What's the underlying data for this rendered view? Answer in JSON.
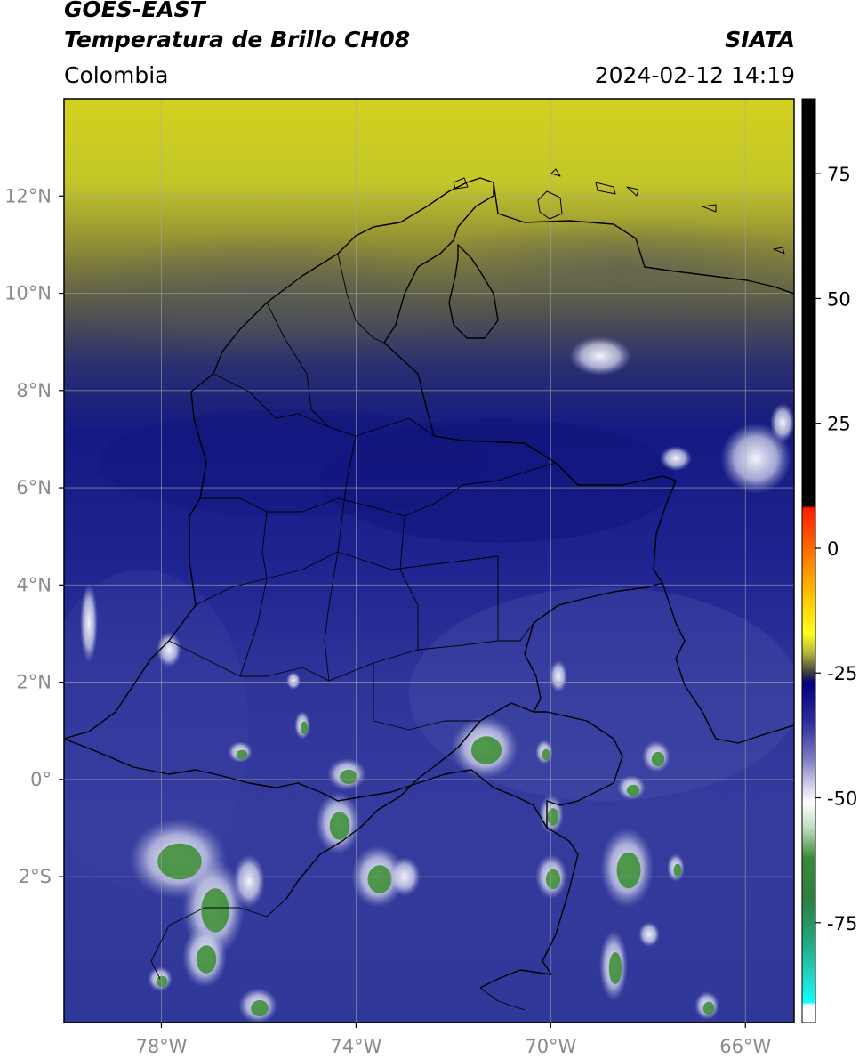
{
  "header": {
    "satellite": "GOES-EAST",
    "product": "Temperatura de Brillo CH08",
    "region": "Colombia",
    "agency": "SIATA",
    "datetime": "2024-02-12 14:19"
  },
  "map": {
    "lon_range": [
      -80,
      -65
    ],
    "lat_range": [
      -5.0,
      14.0
    ],
    "lon_ticks": [
      {
        "value": -78,
        "label": "78°W"
      },
      {
        "value": -74,
        "label": "74°W"
      },
      {
        "value": -70,
        "label": "70°W"
      },
      {
        "value": -66,
        "label": "66°W"
      }
    ],
    "lat_ticks": [
      {
        "value": 12,
        "label": "12°N"
      },
      {
        "value": 10,
        "label": "10°N"
      },
      {
        "value": 8,
        "label": "8°N"
      },
      {
        "value": 6,
        "label": "6°N"
      },
      {
        "value": 4,
        "label": "4°N"
      },
      {
        "value": 2,
        "label": "2°N"
      },
      {
        "value": 0,
        "label": "0°"
      },
      {
        "value": -2,
        "label": "2°S"
      }
    ],
    "gridlines": true,
    "colors": {
      "warm_yellow": "#cfcf1f",
      "mid_olive": "#6f6e3a",
      "cold_navy": "#1b1f86",
      "mid_blue": "#3a42a6",
      "cloud_white": "#f3f3f8",
      "deep_convection_green": "#3f8f3a",
      "borders": "#000000",
      "grid": "#9a9a9a"
    }
  },
  "colorbar": {
    "range": [
      -95,
      90
    ],
    "ticks": [
      {
        "value": 75,
        "label": "75"
      },
      {
        "value": 50,
        "label": "50"
      },
      {
        "value": 25,
        "label": "25"
      },
      {
        "value": 0,
        "label": "0"
      },
      {
        "value": -25,
        "label": "-25"
      },
      {
        "value": -50,
        "label": "-50"
      },
      {
        "value": -75,
        "label": "-75"
      }
    ],
    "stops": [
      {
        "value": 90,
        "color": "#000000"
      },
      {
        "value": 8.5,
        "color": "#000000"
      },
      {
        "value": 8,
        "color": "#ff1a00"
      },
      {
        "value": 0,
        "color": "#ff6a00"
      },
      {
        "value": -10,
        "color": "#ffc800"
      },
      {
        "value": -17,
        "color": "#ffff1a"
      },
      {
        "value": -21,
        "color": "#b5b53c"
      },
      {
        "value": -25,
        "color": "#3c3c3c"
      },
      {
        "value": -27,
        "color": "#000080"
      },
      {
        "value": -35,
        "color": "#30309a"
      },
      {
        "value": -42,
        "color": "#7878c0"
      },
      {
        "value": -48,
        "color": "#d8d8ee"
      },
      {
        "value": -51,
        "color": "#ffffff"
      },
      {
        "value": -56,
        "color": "#c0dcc0"
      },
      {
        "value": -62,
        "color": "#3a8a3a"
      },
      {
        "value": -70,
        "color": "#2f7f3f"
      },
      {
        "value": -78,
        "color": "#23a37a"
      },
      {
        "value": -86,
        "color": "#20d8c8"
      },
      {
        "value": -91,
        "color": "#10ffff"
      },
      {
        "value": -91.5,
        "color": "#ffffff"
      },
      {
        "value": -95,
        "color": "#ffffff"
      }
    ]
  }
}
